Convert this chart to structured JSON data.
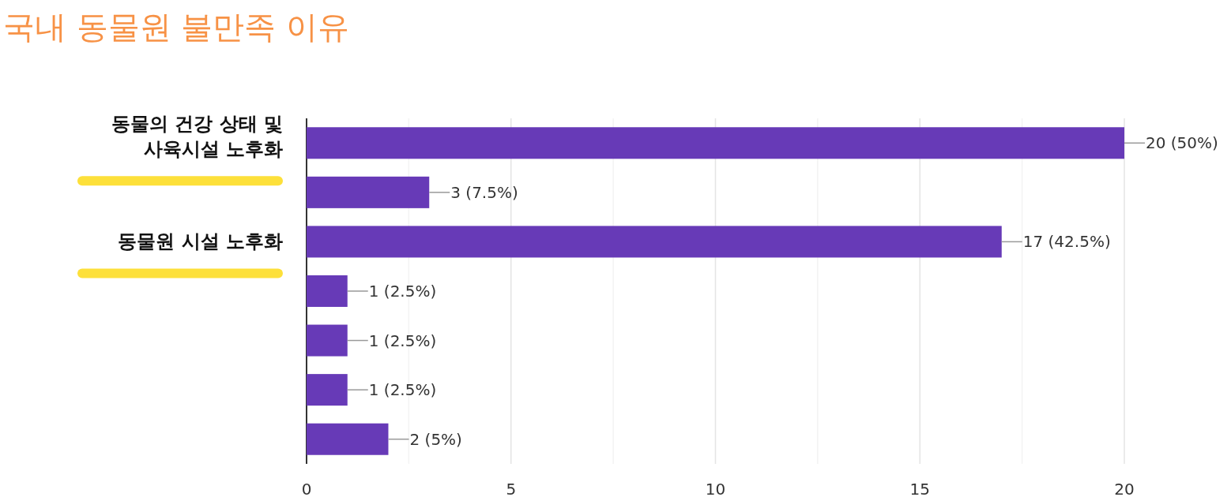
{
  "chart_data": {
    "type": "bar",
    "orientation": "horizontal",
    "title": "국내 동물원 불만족 이유",
    "categories": [
      "동물의 건강 상태 및 사육시설 노후화",
      null,
      "동물원 시설 노후화",
      null,
      null,
      null,
      null
    ],
    "values": [
      20,
      3,
      17,
      1,
      1,
      1,
      2
    ],
    "color": "#673ab7",
    "value_labels": [
      "20 (50%)",
      "3 (7.5%)",
      "17 (42.5%)",
      "1 (2.5%)",
      "1 (2.5%)",
      "1 (2.5%)",
      "2 (5%)"
    ],
    "xlim": [
      0,
      20
    ],
    "xticks": [
      0,
      {
        "value": 2.5,
        "label": null
      },
      5,
      {
        "value": 7.5,
        "label": null
      },
      10,
      {
        "value": 12.5,
        "label": null
      },
      15,
      {
        "value": 17.5,
        "label": null
      },
      20
    ],
    "grid": "x"
  }
}
